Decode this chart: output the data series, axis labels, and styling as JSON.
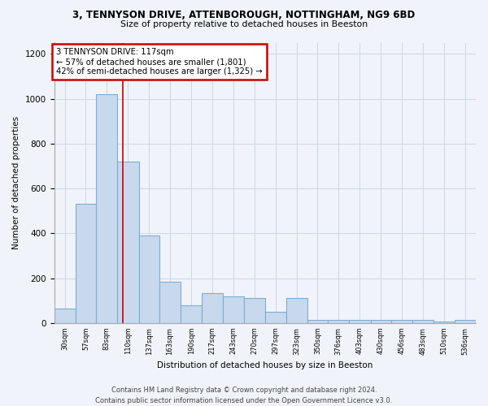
{
  "title_line1": "3, TENNYSON DRIVE, ATTENBOROUGH, NOTTINGHAM, NG9 6BD",
  "title_line2": "Size of property relative to detached houses in Beeston",
  "xlabel": "Distribution of detached houses by size in Beeston",
  "ylabel": "Number of detached properties",
  "bar_color": "#c8d9ee",
  "bar_edge_color": "#7aadd4",
  "annotation_text": "3 TENNYSON DRIVE: 117sqm\n← 57% of detached houses are smaller (1,801)\n42% of semi-detached houses are larger (1,325) →",
  "annotation_box_color": "#ffffff",
  "annotation_box_edge_color": "#cc0000",
  "vline_x": 117,
  "vline_color": "#cc0000",
  "footer_text": "Contains HM Land Registry data © Crown copyright and database right 2024.\nContains public sector information licensed under the Open Government Licence v3.0.",
  "background_color": "#f0f4fa",
  "grid_color": "#d0d8e8",
  "bin_edges": [
    30,
    57,
    83,
    110,
    137,
    163,
    190,
    217,
    243,
    270,
    297,
    323,
    350,
    376,
    403,
    430,
    456,
    483,
    510,
    536,
    563
  ],
  "bar_heights": [
    65,
    530,
    1020,
    720,
    390,
    185,
    80,
    135,
    120,
    110,
    50,
    110,
    12,
    12,
    12,
    12,
    12,
    12,
    5,
    15
  ],
  "ylim": [
    0,
    1250
  ],
  "yticks": [
    0,
    200,
    400,
    600,
    800,
    1000,
    1200
  ]
}
